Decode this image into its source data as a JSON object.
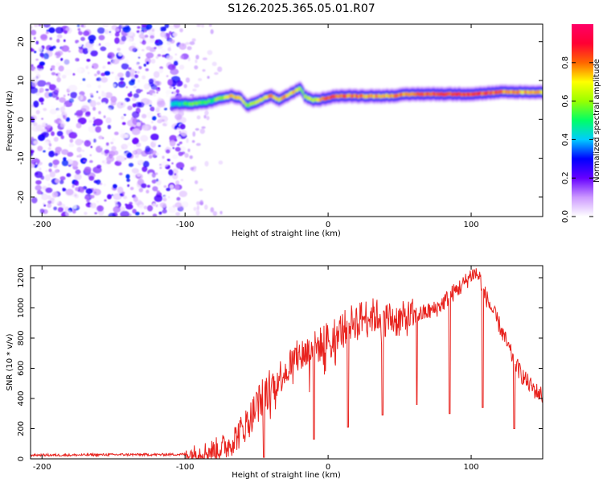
{
  "figure_title": "S126.2025.365.05.01.R07",
  "chart_data": [
    {
      "type": "heatmap",
      "name": "spectrogram",
      "xlabel": "Height of straight line (km)",
      "ylabel": "Frequency (Hz)",
      "xlim": [
        -208,
        150
      ],
      "ylim": [
        -25,
        24.5
      ],
      "xticks": [
        -200,
        -100,
        0,
        100
      ],
      "yticks": [
        -20,
        -10,
        0,
        10,
        20
      ],
      "colorbar": {
        "label": "Normalized spectral amplitude",
        "range": [
          0,
          1
        ],
        "ticks": [
          0.0,
          0.2,
          0.4,
          0.6,
          0.8
        ],
        "tick_labels": [
          "0.0",
          "0.2",
          "0.4",
          "0.6",
          "0.8"
        ],
        "colors": [
          "#ffffff",
          "#cc99ff",
          "#6600ff",
          "#0000ff",
          "#00ccff",
          "#00ff66",
          "#99ff00",
          "#ffff00",
          "#ff6600",
          "#ff0033",
          "#ff0066"
        ]
      },
      "noise_region_x": [
        -208,
        -100
      ],
      "ridge": {
        "x": [
          -110,
          -95,
          -85,
          -75,
          -68,
          -62,
          -57,
          -50,
          -45,
          -40,
          -35,
          -30,
          -25,
          -20,
          -17,
          -12,
          -7,
          -2,
          5,
          20,
          40,
          60,
          80,
          100,
          120,
          135,
          150
        ],
        "frequency": [
          4,
          4,
          4.5,
          5.5,
          6,
          5.5,
          3.5,
          4.5,
          5.5,
          6,
          5,
          6,
          7,
          8,
          6,
          5,
          5,
          5.5,
          6,
          6,
          6,
          6.5,
          6.5,
          6.5,
          7,
          7,
          7
        ],
        "amplitude": [
          0.4,
          0.55,
          0.5,
          0.6,
          0.75,
          0.7,
          0.6,
          0.65,
          0.7,
          0.75,
          0.7,
          0.75,
          0.7,
          0.65,
          0.6,
          0.65,
          0.7,
          0.85,
          0.8,
          0.78,
          0.75,
          0.8,
          0.85,
          0.82,
          0.8,
          0.75,
          0.7
        ]
      }
    },
    {
      "type": "line",
      "name": "snr",
      "xlabel": "Height of straight line (km)",
      "ylabel": "SNR (10 * v/v)",
      "xlim": [
        -208,
        150
      ],
      "ylim": [
        0,
        1280
      ],
      "xticks": [
        -200,
        -100,
        0,
        100
      ],
      "yticks": [
        0,
        200,
        400,
        600,
        800,
        1000,
        1200
      ],
      "color": "#e8231e",
      "series": [
        {
          "name": "SNR",
          "x": [
            -208,
            -180,
            -150,
            -120,
            -100,
            -90,
            -80,
            -70,
            -62,
            -55,
            -50,
            -45,
            -40,
            -35,
            -30,
            -25,
            -20,
            -15,
            -10,
            -5,
            0,
            5,
            10,
            15,
            20,
            25,
            30,
            35,
            40,
            45,
            50,
            55,
            60,
            65,
            70,
            75,
            80,
            85,
            90,
            95,
            100,
            103,
            106,
            110,
            115,
            120,
            125,
            130,
            135,
            140,
            145,
            150
          ],
          "y": [
            25,
            25,
            28,
            28,
            30,
            40,
            55,
            90,
            170,
            260,
            350,
            420,
            480,
            530,
            590,
            640,
            680,
            710,
            730,
            760,
            800,
            830,
            860,
            900,
            920,
            940,
            950,
            945,
            930,
            925,
            920,
            930,
            950,
            960,
            975,
            990,
            1030,
            1080,
            1120,
            1160,
            1220,
            1230,
            1200,
            1080,
            980,
            880,
            760,
            650,
            560,
            500,
            450,
            420
          ]
        }
      ],
      "dips": [
        {
          "x": -45,
          "y": 10
        },
        {
          "x": -10,
          "y": 130
        },
        {
          "x": 14,
          "y": 210
        },
        {
          "x": 38,
          "y": 290
        },
        {
          "x": 62,
          "y": 360
        },
        {
          "x": 85,
          "y": 300
        },
        {
          "x": 108,
          "y": 340
        },
        {
          "x": 130,
          "y": 200
        }
      ]
    }
  ]
}
